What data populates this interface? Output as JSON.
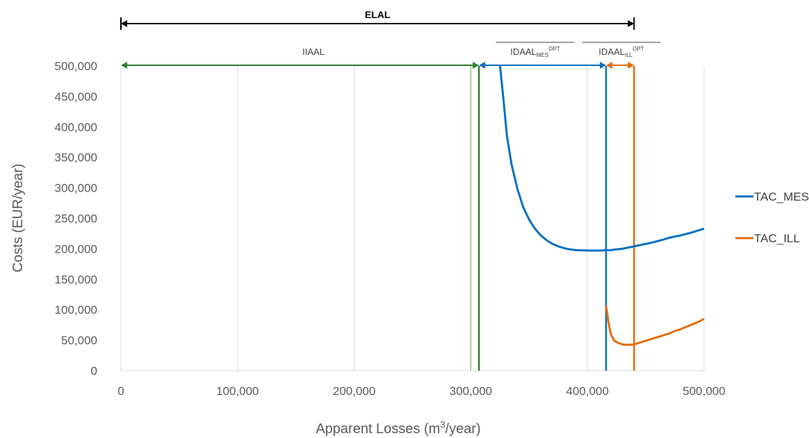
{
  "chart_data": {
    "type": "line",
    "xlabel_main": "Apparent Losses (m",
    "xlabel_sup": "3",
    "xlabel_tail": "/year)",
    "ylabel": "Costs (EUR/year)",
    "xlim": [
      0,
      500000
    ],
    "ylim": [
      0,
      500000
    ],
    "x_ticks": [
      0,
      100000,
      200000,
      300000,
      400000,
      500000
    ],
    "x_tick_labels": [
      "0",
      "100,000",
      "200,000",
      "300,000",
      "400,000",
      "500,000"
    ],
    "y_ticks": [
      0,
      50000,
      100000,
      150000,
      200000,
      250000,
      300000,
      350000,
      400000,
      450000,
      500000
    ],
    "y_tick_labels": [
      "0",
      "50,000",
      "100,000",
      "150,000",
      "200,000",
      "250,000",
      "300,000",
      "350,000",
      "400,000",
      "450,000",
      "500,000"
    ],
    "grid": "vertical",
    "legend_position": "right",
    "series": [
      {
        "name": "TAC_MES",
        "color": "#0070C0",
        "x": [
          325000,
          328000,
          331000,
          335000,
          340000,
          345000,
          350000,
          355000,
          360000,
          365000,
          370000,
          375000,
          380000,
          385000,
          390000,
          395000,
          400000,
          405000,
          410000,
          415000,
          420000,
          425000,
          430000,
          435000,
          440000,
          445000,
          450000,
          455000,
          460000,
          465000,
          470000,
          475000,
          480000,
          485000,
          490000,
          495000,
          500000
        ],
        "y": [
          500000,
          445000,
          385000,
          338000,
          298000,
          268000,
          248000,
          233000,
          222000,
          214000,
          208000,
          204000,
          201000,
          199000,
          198000,
          197500,
          197000,
          197000,
          197000,
          197500,
          198000,
          199000,
          200000,
          202000,
          204000,
          206000,
          208000,
          210000,
          212500,
          215000,
          218000,
          220000,
          222000,
          224500,
          227000,
          230000,
          233000
        ]
      },
      {
        "name": "TAC_ILL",
        "color": "#E46C0A",
        "x": [
          416000,
          418000,
          420000,
          423000,
          426000,
          430000,
          435000,
          440000,
          445000,
          450000,
          455000,
          460000,
          465000,
          470000,
          475000,
          480000,
          485000,
          490000,
          495000,
          500000
        ],
        "y": [
          107000,
          80000,
          60000,
          49000,
          46000,
          43000,
          42500,
          43000,
          46000,
          49000,
          52000,
          55000,
          58000,
          61000,
          65000,
          68000,
          72000,
          76000,
          80000,
          85000
        ]
      }
    ],
    "vertical_lines": [
      {
        "x": 300000,
        "color": "#70AD47"
      },
      {
        "x": 307000,
        "color": "#2E7D32"
      },
      {
        "x": 416000,
        "color": "#0070C0"
      },
      {
        "x": 440000,
        "color": "#E46C0A"
      }
    ],
    "annotations": [
      {
        "label": "ELAL",
        "from": 0,
        "to": 440000,
        "color": "#000000"
      },
      {
        "label": "IIAAL",
        "from": 0,
        "to": 307000,
        "color": "#2E7D32"
      },
      {
        "label_main": "IDAAL",
        "label_sub": "MES",
        "label_sup": "OPT",
        "from": 307000,
        "to": 416000,
        "color": "#0070C0"
      },
      {
        "label_main": "IDAAL",
        "label_sub": "ILL",
        "label_sup": "OPT",
        "from": 416000,
        "to": 440000,
        "color": "#E46C0A"
      }
    ]
  }
}
